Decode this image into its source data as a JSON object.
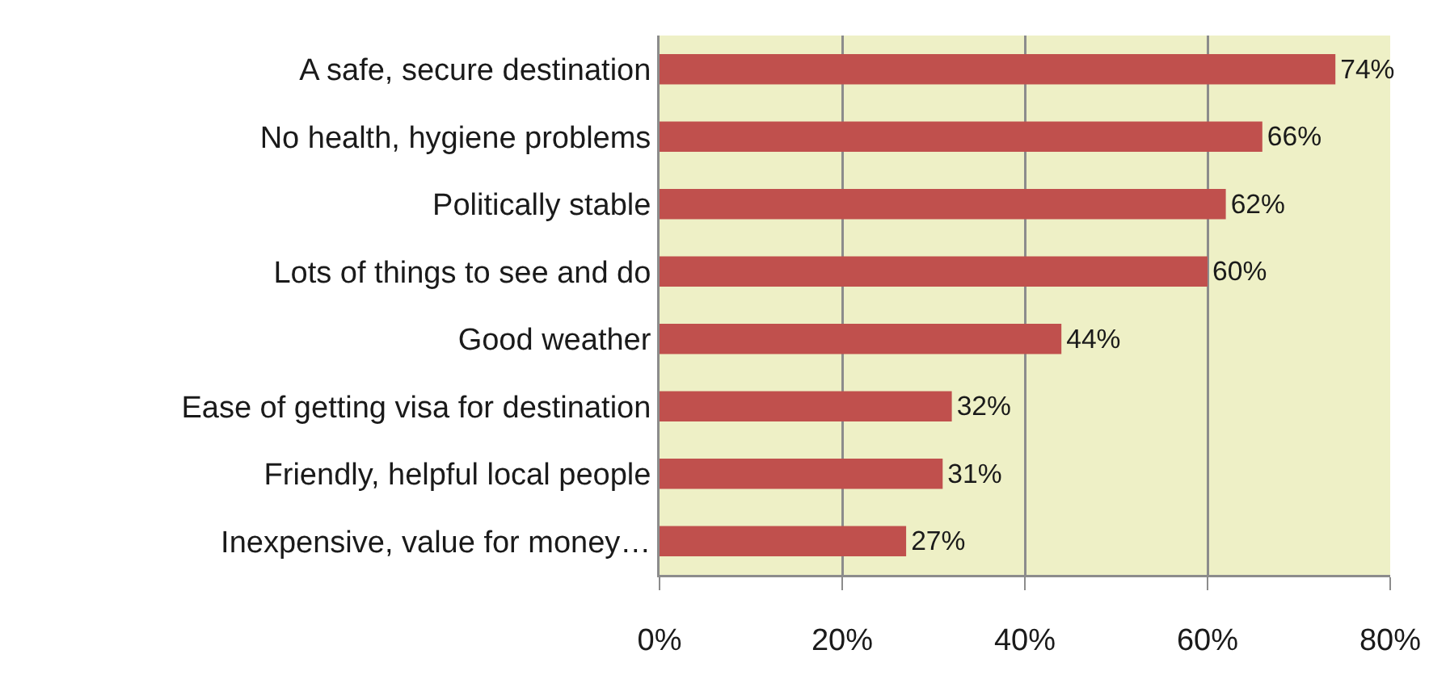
{
  "chart_data": {
    "type": "bar",
    "orientation": "horizontal",
    "categories": [
      "A safe, secure destination",
      "No health, hygiene problems",
      "Politically stable",
      "Lots of things to see and do",
      "Good weather",
      "Ease of getting visa for destination",
      "Friendly, helpful local people",
      "Inexpensive, value for money…"
    ],
    "values": [
      74,
      66,
      62,
      60,
      44,
      32,
      31,
      27
    ],
    "value_labels": [
      "74%",
      "66%",
      "62%",
      "60%",
      "44%",
      "32%",
      "31%",
      "27%"
    ],
    "color": "#c0504d",
    "xlim": [
      0,
      80
    ],
    "xticks": [
      {
        "value": 0,
        "label": "0%"
      },
      {
        "value": 20,
        "label": "20%"
      },
      {
        "value": 40,
        "label": "40%"
      },
      {
        "value": 60,
        "label": "60%"
      },
      {
        "value": 80,
        "label": "80%"
      }
    ],
    "grid": "x"
  }
}
